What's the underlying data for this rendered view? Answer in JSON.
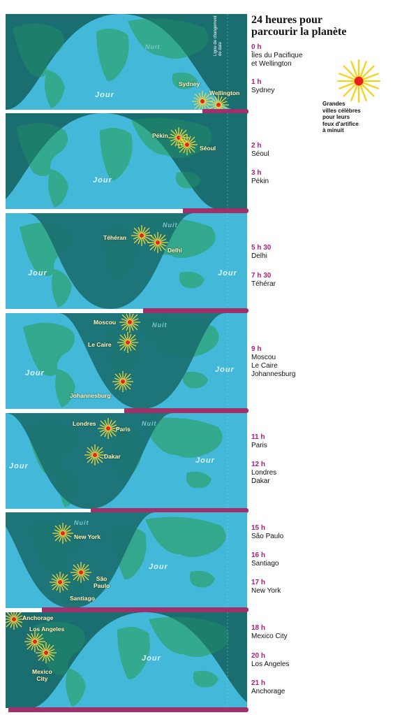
{
  "title": "24 heures pour\nparcourir la planète",
  "legend": {
    "text": "Grandes\nvilles célèbres\npour leurs\nfeux d'artifice\nà minuit",
    "icon": "firework-icon"
  },
  "dateline_label": "Ligne de changement\nde date",
  "day_label": "Jour",
  "night_label": "Nuit",
  "colors": {
    "day": "#44b8d8",
    "night": "#1a6e70",
    "land_day": "#33a88a",
    "land_night": "#1d7f6b",
    "timeline": "#a0306a",
    "hour": "#b01c7a"
  },
  "panels": [
    {
      "cities": [
        "Sydney",
        "Wellington"
      ]
    },
    {
      "cities": [
        "Pékin",
        "Séoul"
      ]
    },
    {
      "cities": [
        "Téhéran",
        "Delhi"
      ]
    },
    {
      "cities": [
        "Moscou",
        "Le Caire",
        "Johannesburg"
      ]
    },
    {
      "cities": [
        "Londres",
        "Paris",
        "Dakar"
      ]
    },
    {
      "cities": [
        "New York",
        "São\nPaulo",
        "Santiago"
      ]
    },
    {
      "cities": [
        "Anchorage",
        "Los Angeles",
        "Mexico\nCity"
      ]
    }
  ],
  "entries": [
    {
      "hour": "0 h",
      "city": "Îles du Pacifique\net Wellington"
    },
    {
      "hour": "1 h",
      "city": "Sydney"
    },
    {
      "hour": "2 h",
      "city": "Séoul"
    },
    {
      "hour": "3 h",
      "city": "Pékin"
    },
    {
      "hour": "5 h 30",
      "city": "Delhi"
    },
    {
      "hour": "7 h 30",
      "city": "Téhérar"
    },
    {
      "hour": "9 h",
      "city": "Moscou\nLe Caire\nJohannesburg"
    },
    {
      "hour": "11 h",
      "city": "Paris"
    },
    {
      "hour": "12 h",
      "city": "Londres\nDakar"
    },
    {
      "hour": "15 h",
      "city": "São Paulo"
    },
    {
      "hour": "16 h",
      "city": "Santiago"
    },
    {
      "hour": "17 h",
      "city": "New York"
    },
    {
      "hour": "18 h",
      "city": "Mexico City"
    },
    {
      "hour": "20 h",
      "city": "Los Angeles"
    },
    {
      "hour": "21 h",
      "city": "Anchorage"
    }
  ]
}
